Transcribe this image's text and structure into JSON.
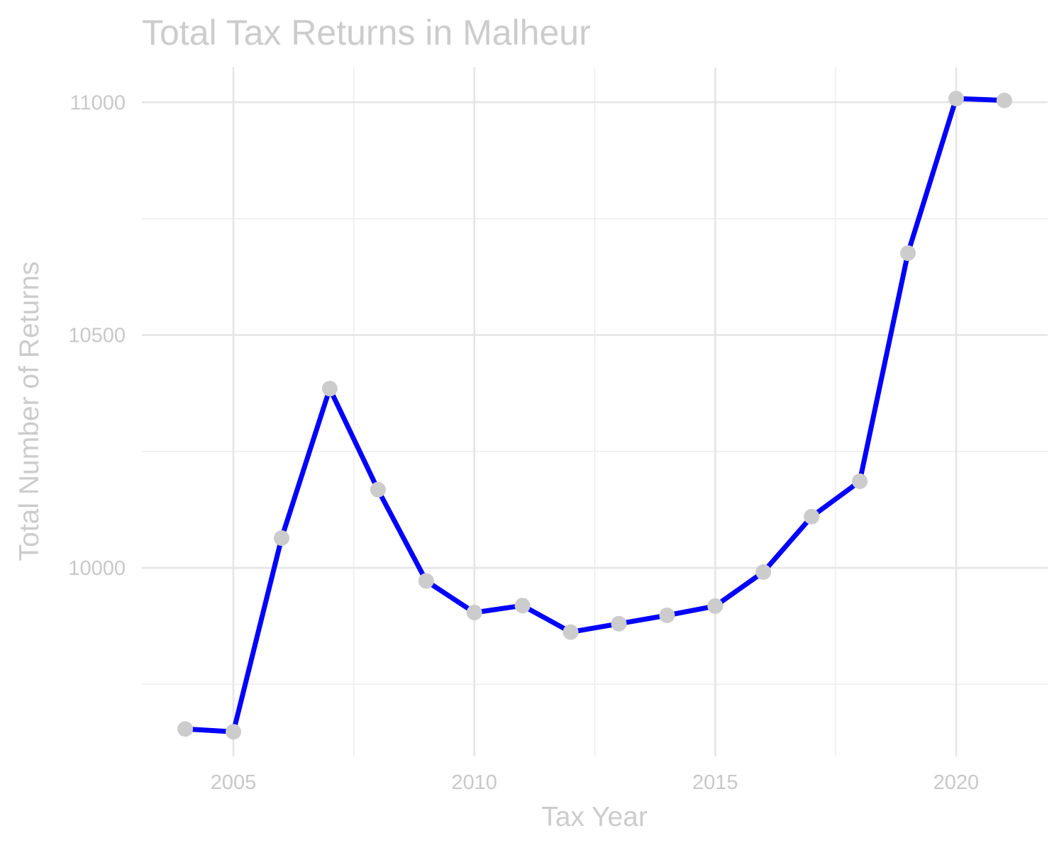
{
  "chart_data": {
    "type": "line",
    "title": "Total Tax Returns in Malheur",
    "xlabel": "Tax Year",
    "ylabel": "Total Number of Returns",
    "x": [
      2004,
      2005,
      2006,
      2007,
      2008,
      2009,
      2010,
      2011,
      2012,
      2013,
      2014,
      2015,
      2016,
      2017,
      2018,
      2019,
      2020,
      2021
    ],
    "series": [
      {
        "values": [
          9654,
          9648,
          10064,
          10385,
          10168,
          9972,
          9904,
          9919,
          9862,
          9880,
          9898,
          9918,
          9991,
          10110,
          10186,
          10676,
          11008,
          11004
        ]
      }
    ],
    "xticks": [
      2005,
      2010,
      2015,
      2020
    ],
    "xtick_labels": [
      "2005",
      "2010",
      "2015",
      "2020"
    ],
    "yticks": [
      10000,
      10500,
      11000
    ],
    "ytick_labels": [
      "10000",
      "10500",
      "11000"
    ],
    "xlim": [
      2003.1,
      2021.9
    ],
    "ylim": [
      9595,
      11075
    ],
    "grid": true,
    "legend": "none",
    "colors": {
      "line": "#0000ff",
      "points": "#cccccc",
      "text": "#cccccc",
      "grid": "#e5e5e5"
    }
  }
}
